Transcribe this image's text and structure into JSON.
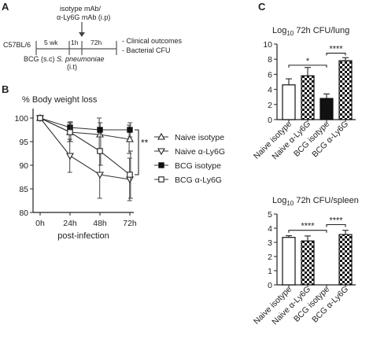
{
  "panels": {
    "a": {
      "letter": "A",
      "strain": "C57BL/6",
      "treatment": "isotype mAb/",
      "treatment_line2": "α-Ly6G mAb (i.p)",
      "interval_1": "5 wk",
      "interval_2": "1h",
      "interval_3": "72h",
      "event_1": "BCG (s.c)",
      "event_2": "S. pneumoniae",
      "event_2_route": "(i.t)",
      "outcome_1": "- Clinical outcomes",
      "outcome_2": "- Bacterial CFU"
    },
    "b": {
      "letter": "B"
    },
    "c": {
      "letter": "C"
    }
  },
  "chart_data": [
    {
      "type": "line",
      "title": "% Body weight loss",
      "xlabel": "post-infection",
      "ylabel": "",
      "x": [
        "0h",
        "24h",
        "48h",
        "72h"
      ],
      "ylim": [
        80,
        102
      ],
      "yticks": [
        80,
        85,
        90,
        95,
        100
      ],
      "legend_position": "right",
      "series": [
        {
          "name": "Naive isotype",
          "marker": "triangle-up-open",
          "values": [
            100,
            97,
            96.5,
            95.5
          ],
          "errors": [
            0,
            2,
            3.5,
            3
          ]
        },
        {
          "name": "Naive α-Ly6G",
          "marker": "triangle-down-open",
          "values": [
            100,
            92,
            88,
            87
          ],
          "errors": [
            0,
            3.5,
            5,
            4.5
          ]
        },
        {
          "name": "BCG isotype",
          "marker": "square-filled",
          "values": [
            100,
            98,
            97.5,
            97.5
          ],
          "errors": [
            0,
            1.2,
            1.5,
            1.5
          ]
        },
        {
          "name": "BCG α-Ly6G",
          "marker": "square-open",
          "values": [
            100,
            97,
            93,
            88
          ],
          "errors": [
            0,
            2,
            3,
            5
          ]
        }
      ],
      "annotations": [
        {
          "text": "**"
        }
      ]
    },
    {
      "type": "bar",
      "title": "Log10 72h CFU/lung",
      "title_prefix": "Log",
      "title_sub": "10",
      "title_suffix": " 72h CFU/lung",
      "categories": [
        "Naive isotype",
        "Naive α-Ly6G",
        "BCG isotype",
        "BCG α-Ly6G"
      ],
      "values": [
        4.6,
        5.8,
        2.8,
        7.8
      ],
      "errors": [
        0.8,
        1.1,
        0.6,
        0.4
      ],
      "fills": [
        "open",
        "checker",
        "filled",
        "checker"
      ],
      "ylim": [
        0,
        10
      ],
      "yticks": [
        0,
        2,
        4,
        6,
        8,
        10
      ],
      "annotations": [
        {
          "text": "*"
        },
        {
          "text": "****"
        }
      ]
    },
    {
      "type": "bar",
      "title": "Log10 72h CFU/spleen",
      "title_prefix": "Log",
      "title_sub": "10",
      "title_suffix": " 72h CFU/spleen",
      "categories": [
        "Naive isotype",
        "Naive α-Ly6G",
        "BCG isotype",
        "BCG α-Ly6G"
      ],
      "values": [
        3.35,
        3.1,
        0,
        3.55
      ],
      "errors": [
        0.12,
        0.35,
        0,
        0.3
      ],
      "fills": [
        "open",
        "checker",
        "filled",
        "checker"
      ],
      "ylim": [
        0,
        5
      ],
      "yticks": [
        0,
        1,
        2,
        3,
        4,
        5
      ],
      "annotations": [
        {
          "text": "****"
        },
        {
          "text": "****"
        }
      ]
    }
  ]
}
